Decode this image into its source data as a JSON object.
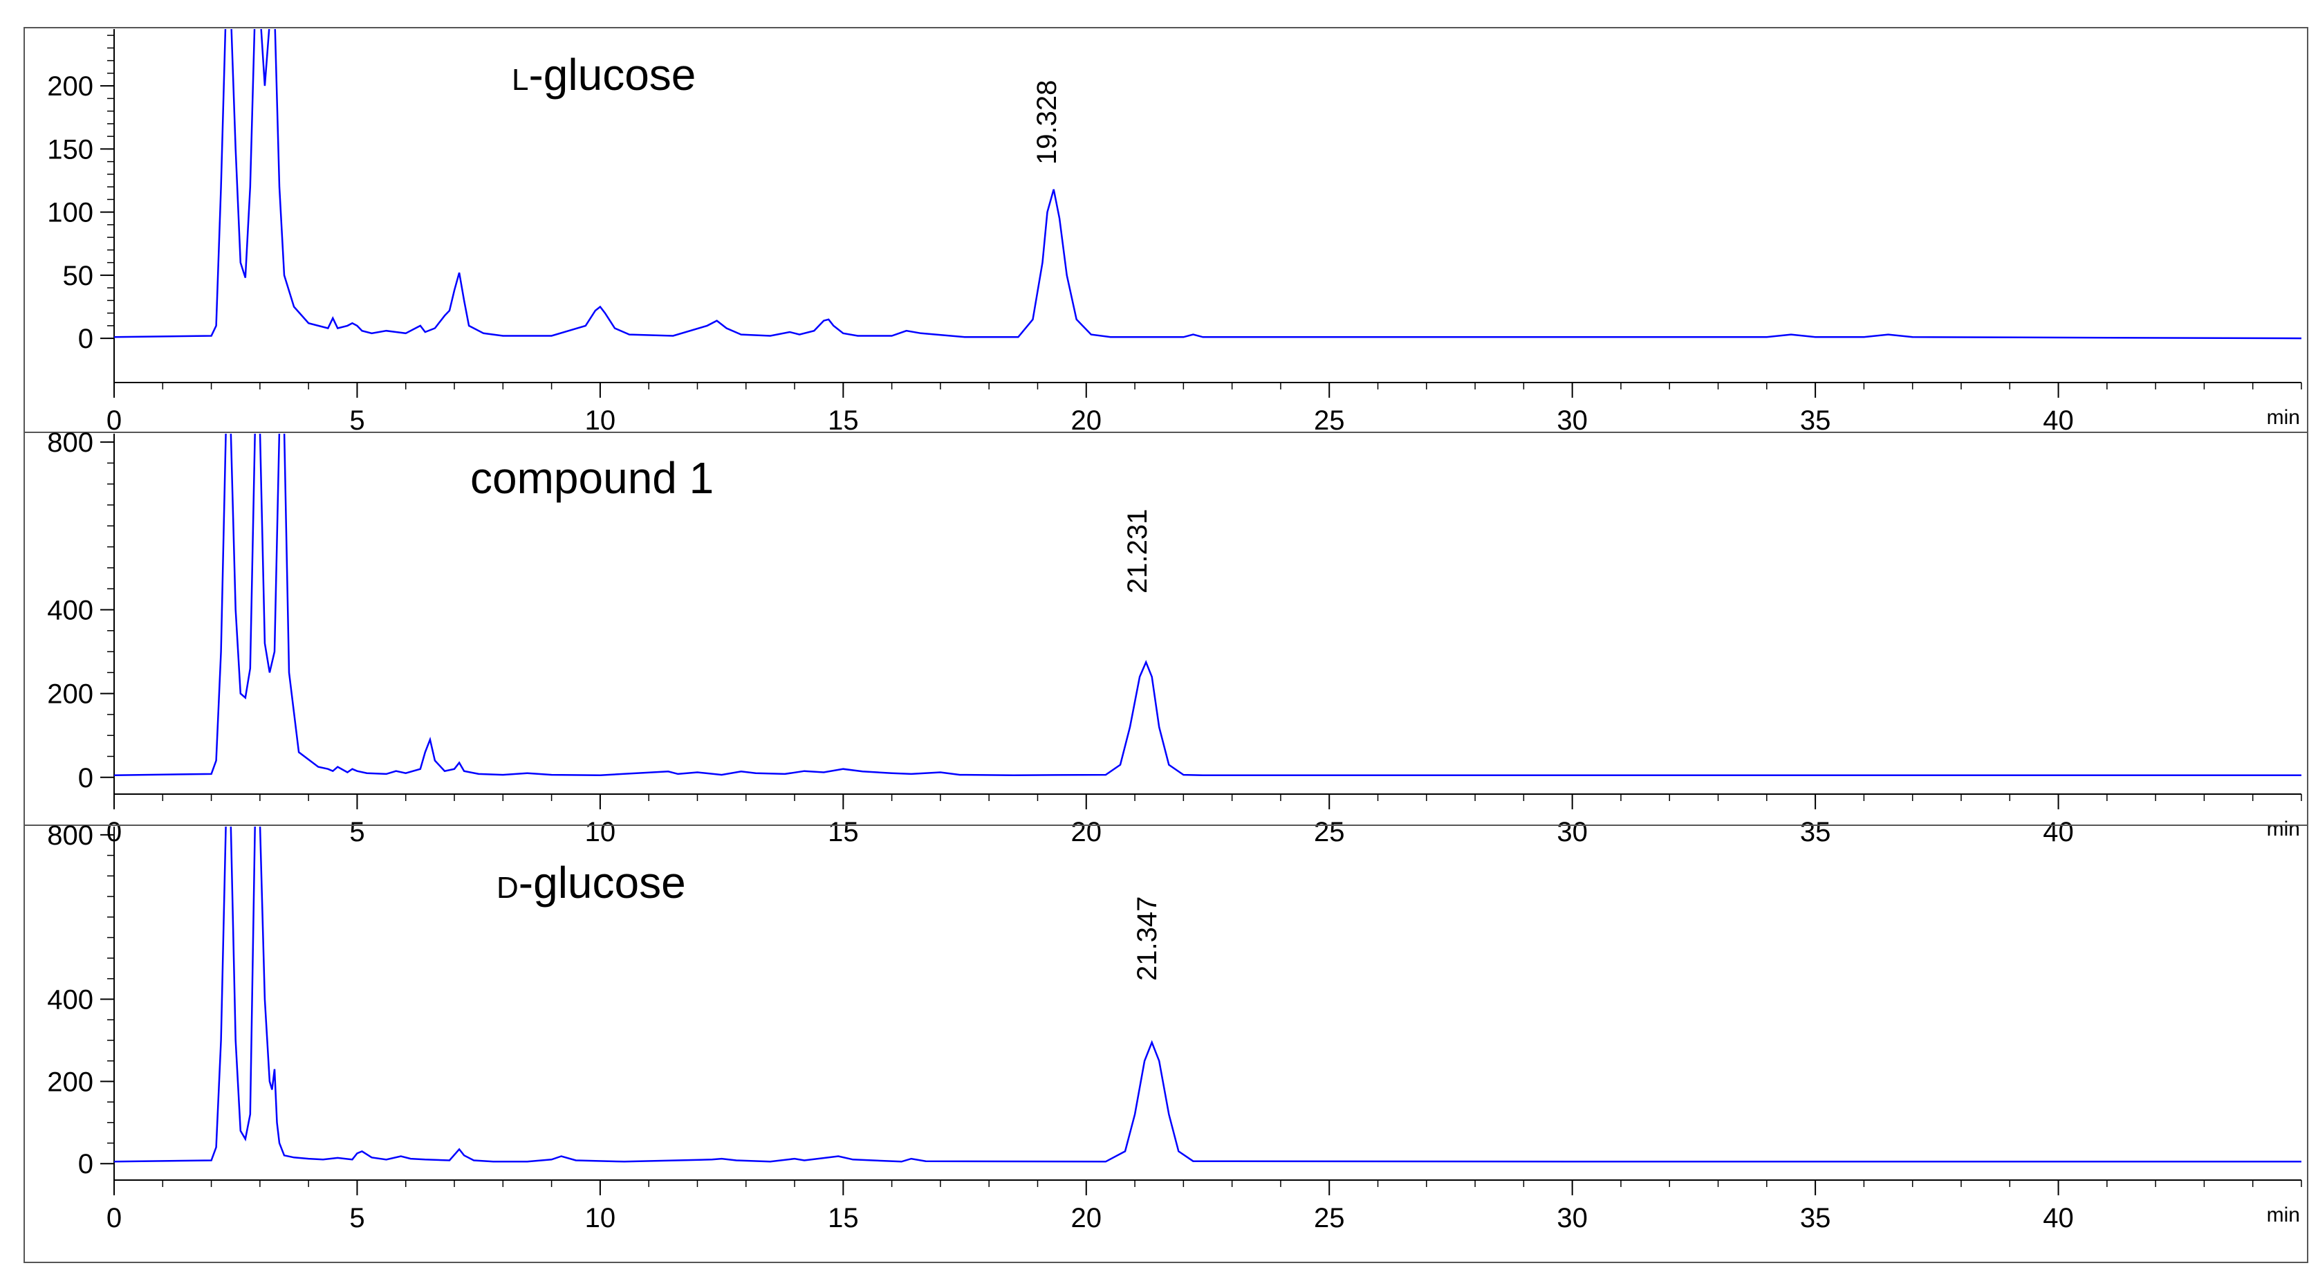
{
  "colors": {
    "trace": "#0000ff",
    "frame": "#555555",
    "axis": "#000000"
  },
  "chart_data": [
    {
      "type": "line",
      "title_prefix": "L",
      "title": "-glucose",
      "xlabel": "",
      "ylabel": "",
      "x_unit": "min",
      "xlim": [
        0,
        45
      ],
      "ylim": [
        -35,
        245
      ],
      "x_ticks": [
        0,
        5,
        10,
        15,
        20,
        25,
        30,
        35,
        40
      ],
      "y_ticks": [
        0,
        50,
        100,
        150,
        200
      ],
      "peak_label": {
        "x": 19.328,
        "text": "19.328"
      },
      "series": [
        {
          "x": [
            0,
            2,
            2.1,
            2.2,
            2.3,
            2.4,
            2.5,
            2.6,
            2.7,
            2.8,
            2.9,
            3.0,
            3.1,
            3.2,
            3.3,
            3.4,
            3.5,
            3.7,
            4.0,
            4.4,
            4.5,
            4.6,
            4.8,
            4.9,
            5.0,
            5.1,
            5.3,
            5.6,
            5.8,
            6.0,
            6.2,
            6.3,
            6.4,
            6.6,
            6.8,
            6.9,
            7.0,
            7.1,
            7.2,
            7.3,
            7.6,
            8.0,
            9.0,
            9.7,
            9.9,
            10.0,
            10.1,
            10.3,
            10.6,
            11.5,
            12.2,
            12.4,
            12.6,
            12.9,
            13.5,
            13.9,
            14.1,
            14.4,
            14.6,
            14.7,
            14.8,
            15.0,
            15.3,
            16.0,
            16.3,
            16.6,
            17.5,
            18.6,
            18.9,
            19.1,
            19.2,
            19.33,
            19.45,
            19.6,
            19.8,
            20.1,
            20.5,
            22,
            22.2,
            22.4,
            30,
            34,
            34.5,
            35,
            36,
            36.5,
            37,
            45
          ],
          "y": [
            1,
            2,
            10,
            120,
            260,
            260,
            150,
            60,
            48,
            120,
            260,
            260,
            200,
            250,
            260,
            120,
            50,
            25,
            12,
            8,
            16,
            8,
            10,
            12,
            10,
            6,
            4,
            6,
            5,
            4,
            8,
            10,
            5,
            8,
            18,
            22,
            38,
            52,
            30,
            10,
            4,
            2,
            2,
            10,
            22,
            25,
            20,
            8,
            3,
            2,
            10,
            14,
            8,
            3,
            2,
            5,
            3,
            6,
            14,
            15,
            10,
            4,
            2,
            2,
            6,
            4,
            1,
            1,
            15,
            60,
            100,
            118,
            95,
            50,
            15,
            3,
            1,
            1,
            3,
            1,
            1,
            1,
            3,
            1,
            1,
            3,
            1,
            0
          ]
        }
      ]
    },
    {
      "type": "line",
      "title": "compound 1",
      "xlabel": "",
      "ylabel": "",
      "x_unit": "min",
      "xlim": [
        0,
        45
      ],
      "ylim": [
        -40,
        820
      ],
      "x_ticks": [
        0,
        5,
        10,
        15,
        20,
        25,
        30,
        35,
        40
      ],
      "y_ticks": [
        0,
        200,
        400,
        800
      ],
      "peak_label": {
        "x": 21.231,
        "text": "21.231"
      },
      "series": [
        {
          "x": [
            0,
            2,
            2.1,
            2.2,
            2.3,
            2.4,
            2.5,
            2.6,
            2.7,
            2.8,
            2.9,
            3.0,
            3.1,
            3.2,
            3.3,
            3.4,
            3.5,
            3.6,
            3.8,
            4.2,
            4.4,
            4.5,
            4.6,
            4.8,
            4.9,
            5.0,
            5.2,
            5.6,
            5.8,
            6.0,
            6.3,
            6.4,
            6.5,
            6.6,
            6.8,
            7.0,
            7.1,
            7.2,
            7.5,
            8.0,
            8.5,
            9.0,
            10.0,
            11.4,
            11.6,
            12.0,
            12.5,
            12.9,
            13.2,
            13.8,
            14.2,
            14.6,
            15.0,
            15.4,
            16.0,
            16.4,
            17.0,
            17.4,
            18.5,
            20.4,
            20.7,
            20.9,
            21.1,
            21.23,
            21.35,
            21.5,
            21.7,
            22.0,
            22.4,
            30,
            45
          ],
          "y": [
            5,
            8,
            40,
            300,
            830,
            830,
            400,
            200,
            190,
            260,
            830,
            830,
            320,
            250,
            300,
            830,
            830,
            250,
            60,
            25,
            20,
            15,
            25,
            12,
            20,
            15,
            10,
            8,
            15,
            10,
            20,
            60,
            90,
            40,
            15,
            20,
            35,
            15,
            8,
            6,
            10,
            6,
            5,
            14,
            8,
            12,
            6,
            14,
            10,
            8,
            15,
            12,
            20,
            14,
            10,
            8,
            12,
            6,
            5,
            6,
            30,
            120,
            240,
            275,
            240,
            120,
            30,
            6,
            5,
            5,
            5
          ]
        }
      ]
    },
    {
      "type": "line",
      "title_prefix": "D",
      "title": "-glucose",
      "xlabel": "",
      "ylabel": "",
      "x_unit": "min",
      "xlim": [
        0,
        45
      ],
      "ylim": [
        -40,
        820
      ],
      "x_ticks": [
        0,
        5,
        10,
        15,
        20,
        25,
        30,
        35,
        40
      ],
      "y_ticks": [
        0,
        200,
        400,
        800
      ],
      "peak_label": {
        "x": 21.347,
        "text": "21.347"
      },
      "series": [
        {
          "x": [
            0,
            2,
            2.1,
            2.2,
            2.3,
            2.4,
            2.5,
            2.6,
            2.7,
            2.8,
            2.9,
            3.0,
            3.1,
            3.2,
            3.25,
            3.3,
            3.35,
            3.4,
            3.45,
            3.5,
            3.7,
            4.0,
            4.3,
            4.6,
            4.9,
            5.0,
            5.1,
            5.3,
            5.6,
            5.9,
            6.1,
            6.4,
            6.9,
            7.1,
            7.2,
            7.4,
            7.8,
            8.5,
            9.0,
            9.2,
            9.5,
            10.5,
            12.3,
            12.5,
            12.8,
            13.5,
            14.0,
            14.2,
            14.7,
            14.9,
            15.2,
            16.2,
            16.4,
            16.7,
            20.4,
            20.8,
            21.0,
            21.2,
            21.35,
            21.5,
            21.7,
            21.9,
            22.2,
            30,
            45
          ],
          "y": [
            5,
            8,
            40,
            300,
            830,
            830,
            300,
            80,
            60,
            120,
            830,
            830,
            400,
            200,
            180,
            230,
            100,
            50,
            35,
            20,
            15,
            12,
            10,
            14,
            10,
            25,
            30,
            15,
            10,
            18,
            12,
            10,
            8,
            35,
            20,
            8,
            5,
            5,
            10,
            18,
            8,
            5,
            10,
            12,
            8,
            5,
            12,
            8,
            15,
            18,
            10,
            5,
            12,
            6,
            5,
            30,
            120,
            250,
            295,
            250,
            120,
            30,
            6,
            5,
            5
          ]
        }
      ]
    }
  ]
}
